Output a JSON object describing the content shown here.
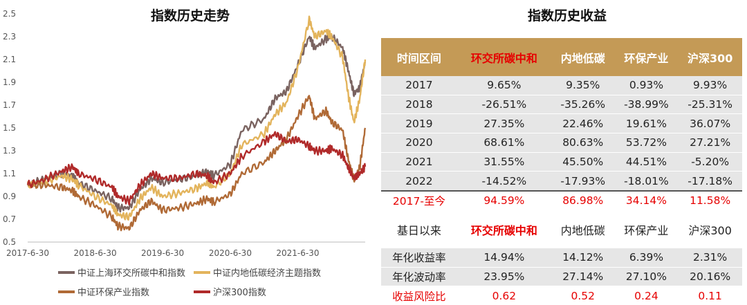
{
  "chart_title": "指数历史走势",
  "table_title": "指数历史收益",
  "chart_data": {
    "type": "line",
    "ylim": [
      0.5,
      2.5
    ],
    "y_ticks": [
      "2.5",
      "2.3",
      "2.1",
      "1.9",
      "1.7",
      "1.5",
      "1.3",
      "1.1",
      "0.9",
      "0.7",
      "0.5"
    ],
    "x_ticks": [
      "2017-6-30",
      "2018-6-30",
      "2019-6-30",
      "2020-6-30",
      "2021-6-30"
    ],
    "x": [
      "2017-06-30",
      "2017-09-30",
      "2017-12-31",
      "2018-02-28",
      "2018-03-31",
      "2018-06-30",
      "2018-09-30",
      "2018-10-31",
      "2018-12-31",
      "2019-02-28",
      "2019-04-30",
      "2019-06-30",
      "2019-09-30",
      "2019-12-31",
      "2020-02-28",
      "2020-03-31",
      "2020-06-30",
      "2020-08-31",
      "2020-12-31",
      "2021-02-28",
      "2021-04-30",
      "2021-06-30",
      "2021-08-31",
      "2021-09-30",
      "2021-11-30",
      "2021-12-31",
      "2022-02-28",
      "2022-03-31",
      "2022-04-30",
      "2022-05-31",
      "2022-06-30"
    ],
    "series": [
      {
        "name": "中证上海环交所碳中和指数",
        "color": "#7a6360",
        "values": [
          1.0,
          1.05,
          1.1,
          1.08,
          1.02,
          0.95,
          0.88,
          0.8,
          0.8,
          0.96,
          1.06,
          1.02,
          1.05,
          1.08,
          1.12,
          1.08,
          1.18,
          1.48,
          1.58,
          1.76,
          1.82,
          2.05,
          2.3,
          2.2,
          2.28,
          2.3,
          2.2,
          2.0,
          1.8,
          1.85,
          2.08
        ]
      },
      {
        "name": "中证内地低碳经济主题指数",
        "color": "#e3b45c",
        "values": [
          1.0,
          1.03,
          1.08,
          1.05,
          1.0,
          0.9,
          0.82,
          0.74,
          0.72,
          0.88,
          0.98,
          0.9,
          0.93,
          0.97,
          1.02,
          0.98,
          1.1,
          1.35,
          1.45,
          1.62,
          1.72,
          2.02,
          2.45,
          2.3,
          2.35,
          2.3,
          2.12,
          1.78,
          1.55,
          1.75,
          2.1
        ]
      },
      {
        "name": "中证环保产业指数",
        "color": "#b06a36",
        "values": [
          1.0,
          1.0,
          0.98,
          0.95,
          0.9,
          0.82,
          0.72,
          0.64,
          0.62,
          0.78,
          0.86,
          0.78,
          0.8,
          0.84,
          0.88,
          0.85,
          0.92,
          1.1,
          1.2,
          1.3,
          1.4,
          1.6,
          1.78,
          1.58,
          1.65,
          1.55,
          1.48,
          1.22,
          1.05,
          1.15,
          1.5
        ]
      },
      {
        "name": "沪深300指数",
        "color": "#b02a2a",
        "values": [
          1.0,
          1.05,
          1.12,
          1.16,
          1.1,
          1.05,
          0.98,
          0.9,
          0.86,
          1.0,
          1.1,
          1.06,
          1.06,
          1.1,
          1.08,
          1.02,
          1.1,
          1.25,
          1.38,
          1.45,
          1.38,
          1.4,
          1.34,
          1.3,
          1.3,
          1.32,
          1.26,
          1.15,
          1.06,
          1.1,
          1.16
        ]
      }
    ]
  },
  "table": {
    "headers": [
      "时间区间",
      "环交所碳中和",
      "内地低碳",
      "环保产业",
      "沪深300"
    ],
    "years": [
      [
        "2017",
        "9.65%",
        "9.35%",
        "0.93%",
        "9.93%"
      ],
      [
        "2018",
        "-26.51%",
        "-35.26%",
        "-38.99%",
        "-25.31%"
      ],
      [
        "2019",
        "27.35%",
        "22.46%",
        "19.61%",
        "36.07%"
      ],
      [
        "2020",
        "68.61%",
        "80.63%",
        "53.72%",
        "27.21%"
      ],
      [
        "2021",
        "31.55%",
        "45.50%",
        "44.51%",
        "-5.20%"
      ],
      [
        "2022",
        "-14.52%",
        "-17.93%",
        "-18.01%",
        "-17.18%"
      ]
    ],
    "total": [
      "2017-至今",
      "94.59%",
      "86.98%",
      "34.14%",
      "11.58%"
    ],
    "sub_headers": [
      "基日以来",
      "环交所碳中和",
      "内地低碳",
      "环保产业",
      "沪深300"
    ],
    "annual": [
      [
        "年化收益率",
        "14.94%",
        "14.12%",
        "6.39%",
        "2.31%"
      ],
      [
        "年化波动率",
        "23.95%",
        "27.14%",
        "27.10%",
        "20.16%"
      ],
      [
        "收益风险比",
        "0.62",
        "0.52",
        "0.24",
        "0.11"
      ]
    ]
  }
}
